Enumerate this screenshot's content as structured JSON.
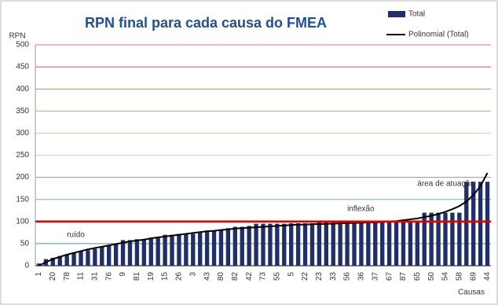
{
  "chart_data": {
    "type": "bar",
    "title": "RPN final para cada causa do FMEA",
    "y_label": "RPN",
    "x_label": "Causas",
    "categories": [
      "1",
      null,
      "20",
      null,
      "78",
      null,
      "11",
      null,
      "31",
      null,
      "76",
      null,
      "9",
      null,
      "81",
      null,
      "19",
      null,
      "15",
      null,
      "26",
      null,
      "3",
      null,
      "43",
      null,
      "80",
      null,
      "82",
      null,
      "42",
      null,
      "73",
      null,
      "55",
      null,
      "5",
      null,
      "22",
      null,
      "23",
      null,
      "33",
      null,
      "56",
      null,
      "36",
      null,
      "37",
      null,
      "67",
      null,
      "87",
      null,
      "65",
      null,
      "50",
      null,
      "54",
      null,
      "58",
      null,
      "69",
      null,
      "44"
    ],
    "series": [
      {
        "name": "Total",
        "color": "#1f2f6b",
        "values": [
          5,
          15,
          18,
          22,
          25,
          30,
          32,
          35,
          38,
          42,
          45,
          50,
          58,
          58,
          60,
          60,
          62,
          65,
          70,
          70,
          72,
          72,
          72,
          75,
          78,
          80,
          80,
          85,
          88,
          88,
          90,
          95,
          95,
          95,
          95,
          95,
          96,
          96,
          96,
          96,
          98,
          98,
          98,
          98,
          98,
          98,
          98,
          98,
          98,
          98,
          100,
          100,
          100,
          100,
          100,
          120,
          120,
          120,
          120,
          120,
          120,
          190,
          190,
          190,
          190
        ]
      },
      {
        "name": "Polinomial (Total)",
        "color": "#000000",
        "type": "line",
        "values": [
          0,
          8,
          15,
          20,
          25,
          29,
          33,
          37,
          40,
          43,
          46,
          49,
          52,
          55,
          57,
          59,
          62,
          64,
          66,
          68,
          70,
          72,
          74,
          76,
          78,
          79,
          81,
          82,
          84,
          85,
          86,
          87,
          88,
          89,
          90,
          91,
          92,
          93,
          93,
          94,
          94,
          95,
          95,
          96,
          96,
          97,
          97,
          98,
          98,
          99,
          100,
          101,
          103,
          105,
          107,
          110,
          113,
          117,
          122,
          128,
          135,
          145,
          160,
          180,
          210
        ]
      }
    ],
    "ylim": [
      0,
      500
    ],
    "yticks": [
      0,
      50,
      100,
      150,
      200,
      250,
      300,
      350,
      400,
      450,
      500
    ],
    "grid": true,
    "grid_colors": [
      "#000000",
      "#4a8fd0",
      "#e02020",
      "#4fc2d0",
      "#5cc05c",
      "#e8e04a",
      "#f0d040",
      "#f0a030",
      "#f08030",
      "#f04060",
      "#f060a0"
    ],
    "threshold": 100,
    "threshold_color": "#e00000",
    "legend": "top-right",
    "annotations": [
      {
        "text": "ruído",
        "x": 4,
        "y": 70
      },
      {
        "text": "inflexão",
        "x": 44,
        "y": 128
      },
      {
        "text": "área de atuação",
        "x": 54,
        "y": 185
      }
    ]
  }
}
